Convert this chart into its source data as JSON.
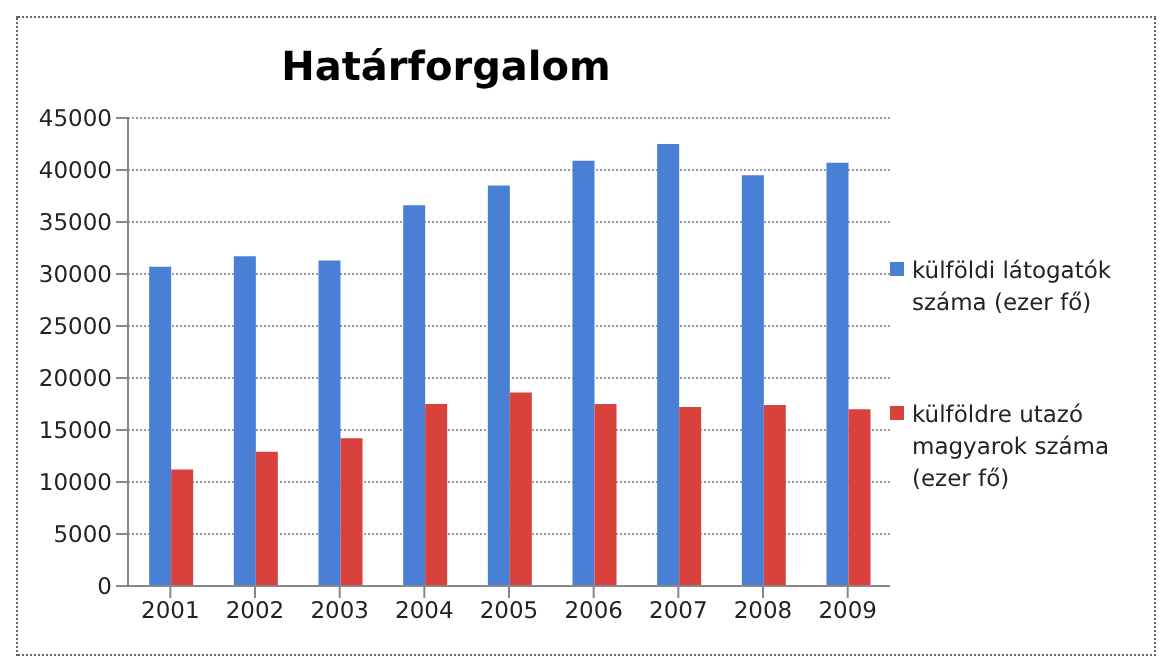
{
  "chart_data": {
    "type": "bar",
    "title": "Határforgalom",
    "categories": [
      "2001",
      "2002",
      "2003",
      "2004",
      "2005",
      "2006",
      "2007",
      "2008",
      "2009"
    ],
    "series": [
      {
        "name": "külföldi látogatók száma (ezer fő)",
        "color": "#4a7fd6",
        "values": [
          30700,
          31700,
          31300,
          36600,
          38500,
          40900,
          42500,
          39500,
          40700
        ]
      },
      {
        "name": "külföldre utazó magyarok száma (ezer fő)",
        "color": "#d9423c",
        "values": [
          11200,
          12900,
          14200,
          17500,
          18600,
          17500,
          17200,
          17400,
          17000
        ]
      }
    ],
    "ylim": [
      0,
      45000
    ],
    "yticks": [
      0,
      5000,
      10000,
      15000,
      20000,
      25000,
      30000,
      35000,
      40000,
      45000
    ],
    "grid": "y",
    "legend": "right"
  }
}
